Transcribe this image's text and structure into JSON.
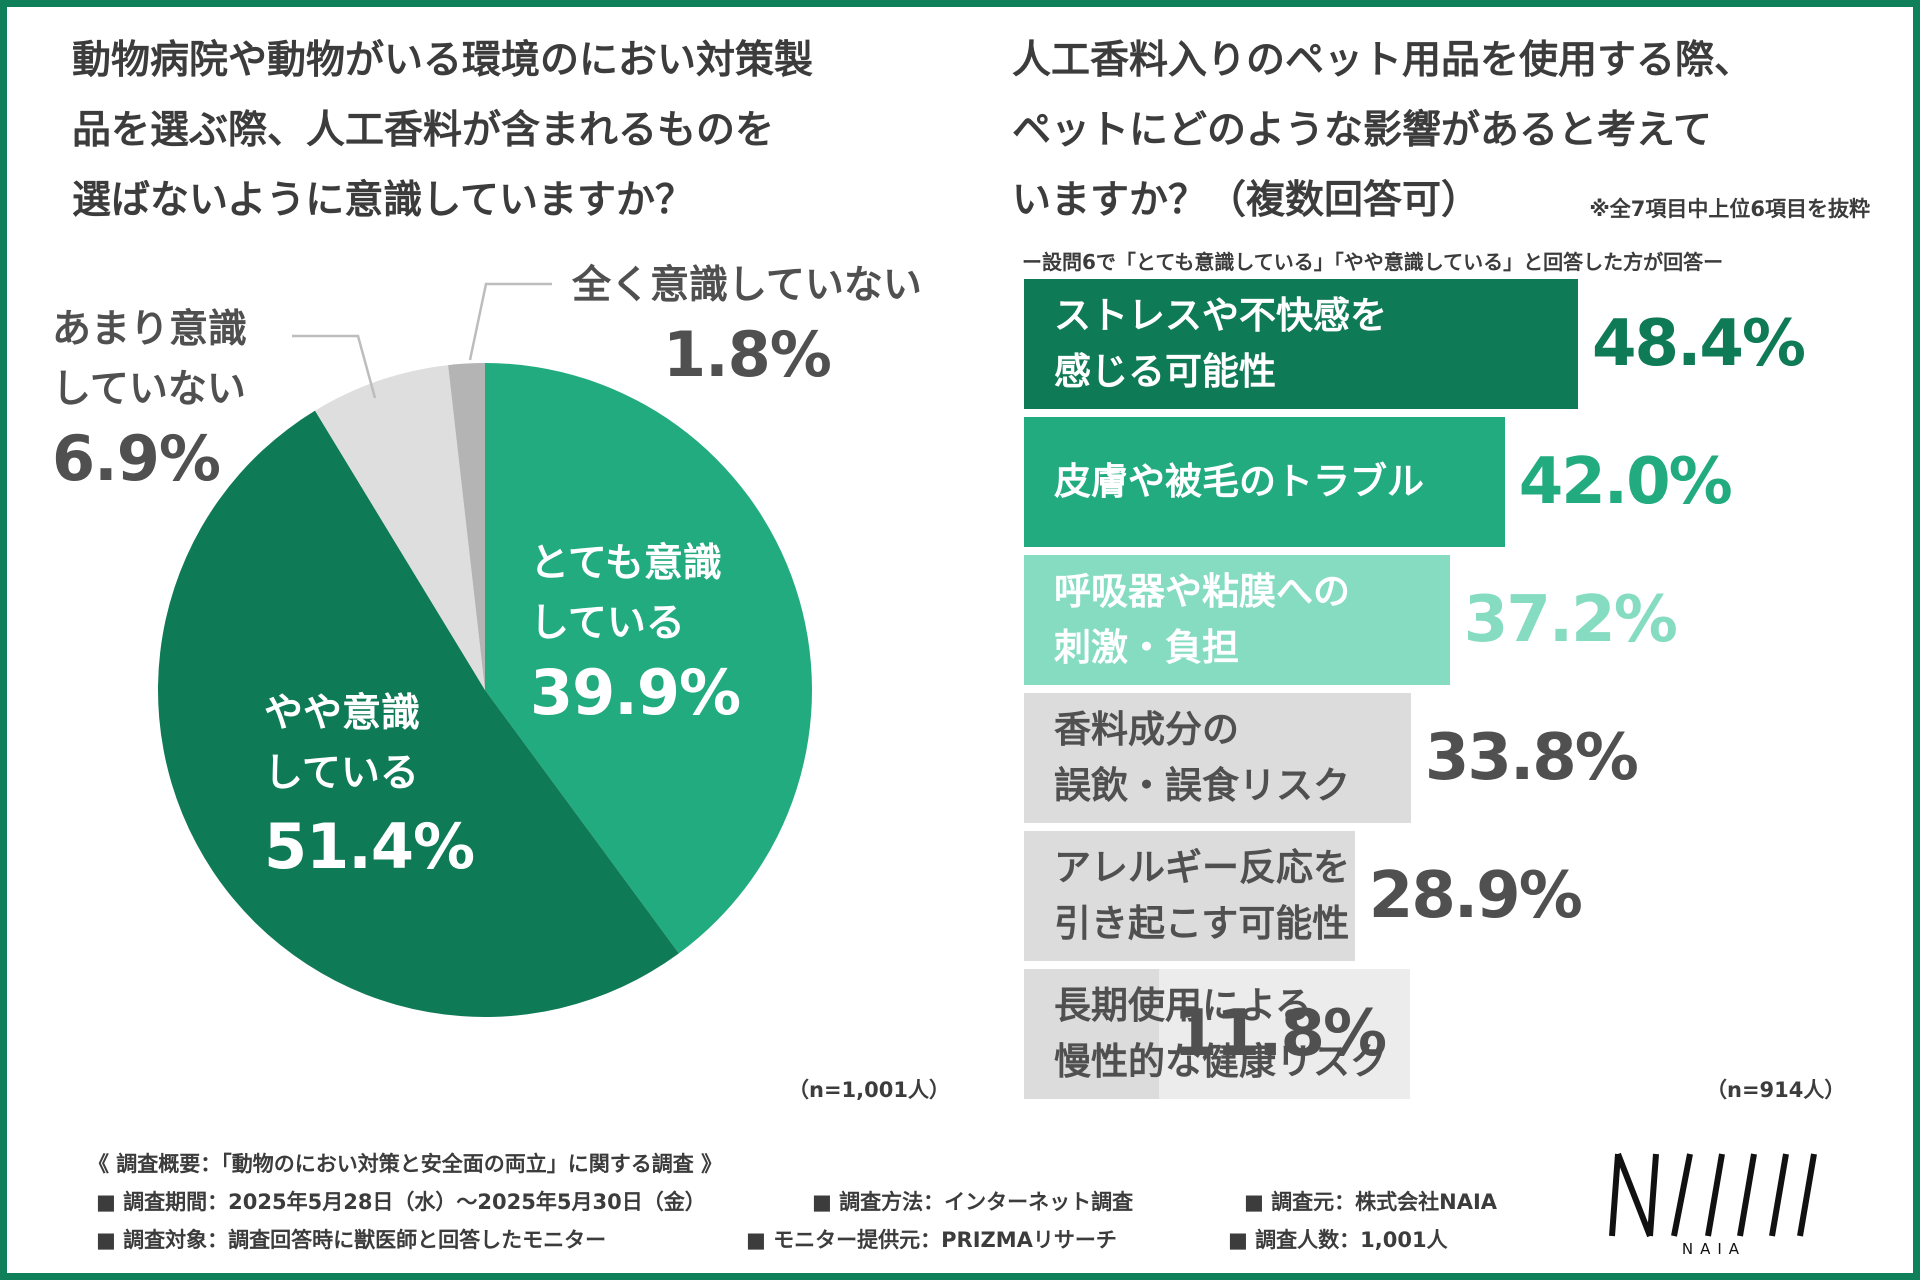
{
  "left_chart": {
    "title_lines": [
      "動物病院や動物がいる環境のにおい対策製",
      "品を選ぶ際、人工香料が含まれるものを",
      "選ばないように意識していますか？"
    ],
    "n_label": "（n=1,001人）"
  },
  "right_chart": {
    "title_lines": [
      "人工香料入りのペット用品を使用する際、",
      "ペットにどのような影響があると考えて",
      "いますか？（複数回答可）"
    ],
    "note": "※全7項目中上位6項目を抜粋",
    "subheading": "ー設問6で「とても意識している」「やや意識している」と回答した方が回答ー",
    "n_label": "（n=914人）"
  },
  "chart_data": [
    {
      "type": "pie",
      "title": "動物病院や動物がいる環境のにおい対策製品を選ぶ際、人工香料が含まれるものを選ばないように意識していますか？",
      "slices": [
        {
          "name": "とても意識している",
          "label_lines": [
            "とても意識",
            "している"
          ],
          "value": 39.9,
          "pct_text": "39.9%",
          "color": "#22ab7f",
          "text_color": "#ffffff"
        },
        {
          "name": "やや意識している",
          "label_lines": [
            "やや意識",
            "している"
          ],
          "value": 51.4,
          "pct_text": "51.4%",
          "color": "#0f7a56",
          "text_color": "#ffffff"
        },
        {
          "name": "あまり意識していない",
          "label_lines": [
            "あまり意識",
            "していない"
          ],
          "value": 6.9,
          "pct_text": "6.9%",
          "color": "#dedede",
          "text_color": "#505050"
        },
        {
          "name": "全く意識していない",
          "label_lines": [
            "全く意識していない"
          ],
          "value": 1.8,
          "pct_text": "1.8%",
          "color": "#b4b4b4",
          "text_color": "#505050"
        }
      ],
      "n": "1,001人"
    },
    {
      "type": "bar",
      "orientation": "horizontal",
      "title": "人工香料入りのペット用品を使用する際、ペットにどのような影響があると考えていますか？（複数回答可）",
      "categories": [
        "ストレスや不快感を感じる可能性",
        "皮膚や被毛のトラブル",
        "呼吸器や粘膜への刺激・負担",
        "香料成分の誤飲・誤食リスク",
        "アレルギー反応を引き起こす可能性",
        "長期使用による慢性的な健康リスク"
      ],
      "label_lines": [
        [
          "ストレスや不快感を",
          "感じる可能性"
        ],
        [
          "皮膚や被毛のトラブル"
        ],
        [
          "呼吸器や粘膜への",
          "刺激・負担"
        ],
        [
          "香料成分の",
          "誤飲・誤食リスク"
        ],
        [
          "アレルギー反応を",
          "引き起こす可能性"
        ],
        [
          "長期使用による",
          "慢性的な健康リスク"
        ]
      ],
      "values": [
        48.4,
        42.0,
        37.2,
        33.8,
        28.9,
        11.8
      ],
      "value_texts": [
        "48.4%",
        "42.0%",
        "37.2%",
        "33.8%",
        "28.9%",
        "11.8%"
      ],
      "bar_colors": [
        "#0f7a56",
        "#22ab7f",
        "#86dcc1",
        "#dcdcdc",
        "#dcdcdc",
        "#dcdcdc"
      ],
      "label_colors": [
        "#ffffff",
        "#ffffff",
        "#ffffff",
        "#505050",
        "#505050",
        "#505050"
      ],
      "value_colors": [
        "#0f7a56",
        "#22ab7f",
        "#86dcc1",
        "#505050",
        "#505050",
        "#505050"
      ],
      "unit": "%",
      "n": "914人"
    }
  ],
  "footer": {
    "summary": "《 調査概要：「動物のにおい対策と安全面の両立」に関する調査 》",
    "period": "■ 調査期間：2025年5月28日（水）～2025年5月30日（金）",
    "method": "■ 調査方法：インターネット調査",
    "organizer": "■ 調査元：株式会社NAIA",
    "target": "■ 調査対象：調査回答時に獣医師と回答したモニター",
    "provider": "■ モニター提供元：PRIZMAリサーチ",
    "respondents": "■ 調査人数：1,001人"
  },
  "logo": {
    "text": "NAIA"
  }
}
